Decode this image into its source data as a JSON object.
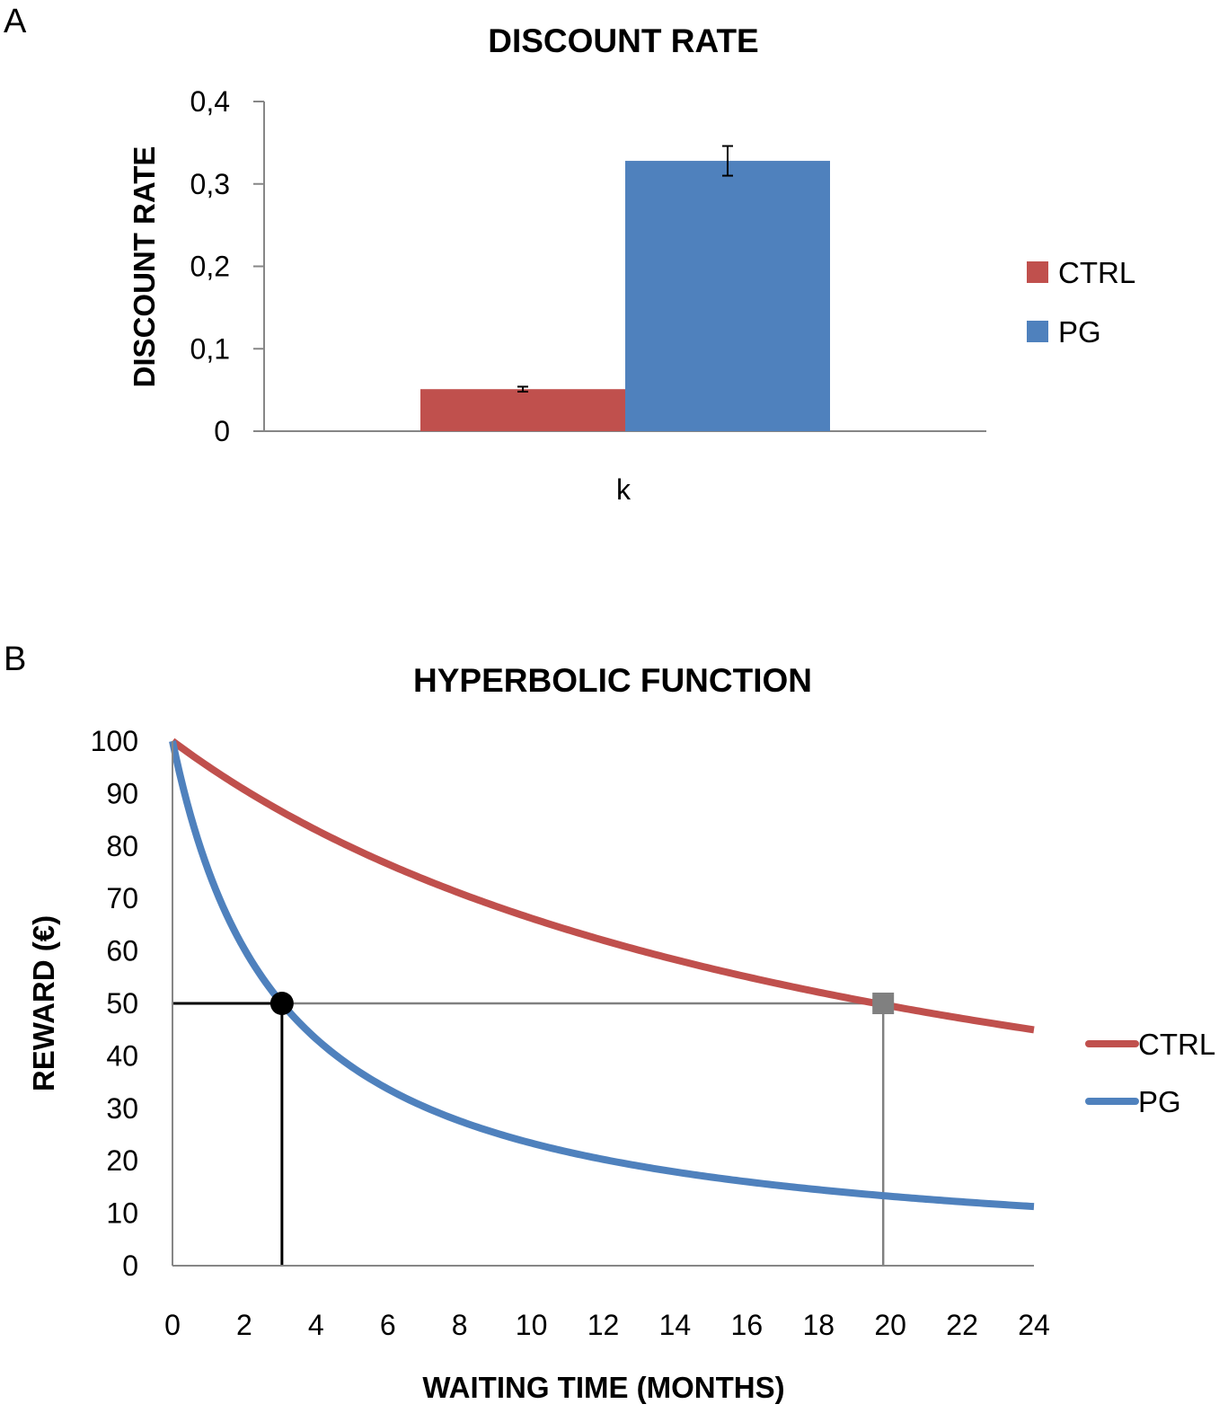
{
  "chart_data": [
    {
      "panel": "A",
      "type": "bar",
      "title": "DISCOUNT RATE",
      "ylabel": "DISCOUNT RATE",
      "xlabel": "",
      "categories": [
        "k"
      ],
      "ylim": [
        0,
        0.4
      ],
      "yticks": [
        0,
        0.1,
        0.2,
        0.3,
        0.4
      ],
      "ytick_labels": [
        "0",
        "0,1",
        "0,2",
        "0,3",
        "0,4"
      ],
      "grid": false,
      "legend_position": "right",
      "series": [
        {
          "name": "CTRL",
          "color": "#c0504d",
          "values": [
            0.051
          ],
          "error": [
            0.003
          ]
        },
        {
          "name": "PG",
          "color": "#4f81bd",
          "values": [
            0.328
          ],
          "error": [
            0.018
          ]
        }
      ]
    },
    {
      "panel": "B",
      "type": "line",
      "title": "HYPERBOLIC FUNCTION",
      "xlabel": "WAITING TIME (MONTHS)",
      "ylabel": "REWARD  (€)",
      "xlim": [
        0,
        24
      ],
      "ylim": [
        0,
        100
      ],
      "xticks": [
        0,
        2,
        4,
        6,
        8,
        10,
        12,
        14,
        16,
        18,
        20,
        22,
        24
      ],
      "yticks": [
        0,
        10,
        20,
        30,
        40,
        50,
        60,
        70,
        80,
        90,
        100
      ],
      "grid": false,
      "legend_position": "right",
      "series": [
        {
          "name": "CTRL",
          "color": "#c0504d",
          "k": 0.051,
          "x": [
            0,
            2,
            4,
            6,
            8,
            10,
            12,
            14,
            16,
            18,
            20,
            22,
            24
          ],
          "y": [
            100,
            90.7,
            83.1,
            76.6,
            71.0,
            66.2,
            62.0,
            58.3,
            55.1,
            52.1,
            49.5,
            47.1,
            45.0
          ]
        },
        {
          "name": "PG",
          "color": "#4f81bd",
          "k": 0.328,
          "x": [
            0,
            2,
            4,
            6,
            8,
            10,
            12,
            14,
            16,
            18,
            20,
            22,
            24
          ],
          "y": [
            100,
            60.4,
            43.3,
            33.7,
            27.6,
            23.4,
            20.3,
            17.9,
            16.0,
            14.5,
            13.2,
            12.2,
            11.3
          ]
        }
      ],
      "markers": [
        {
          "series": "PG",
          "shape": "circle",
          "x": 3.05,
          "y": 50,
          "color": "#000000"
        },
        {
          "series": "CTRL",
          "shape": "square",
          "x": 19.8,
          "y": 50,
          "color": "#808080"
        }
      ],
      "reference_lines": [
        {
          "kind": "horizontal",
          "y": 50,
          "from_x": 0,
          "to_x": 19.8,
          "color": "#808080"
        },
        {
          "kind": "horizontal",
          "y": 50,
          "from_x": 0,
          "to_x": 3.05,
          "color": "#000000"
        },
        {
          "kind": "vertical",
          "x": 3.05,
          "from_y": 0,
          "to_y": 50,
          "color": "#000000"
        },
        {
          "kind": "vertical",
          "x": 19.8,
          "from_y": 0,
          "to_y": 50,
          "color": "#808080"
        }
      ]
    }
  ],
  "panels": {
    "a_letter": "A",
    "b_letter": "B"
  }
}
